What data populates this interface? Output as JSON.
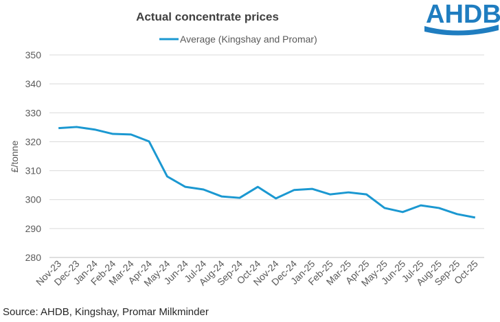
{
  "chart_data": {
    "type": "line",
    "title": "Actual concentrate prices",
    "logo": "AHDB",
    "y_label": "£/tonne",
    "source": "Source: AHDB, Kingshay, Promar Milkminder",
    "categories": [
      "Nov-23",
      "Dec-23",
      "Jan-24",
      "Feb-24",
      "Mar-24",
      "Apr-24",
      "May-24",
      "Jun-24",
      "Jul-24",
      "Aug-24",
      "Sep-24",
      "Oct-24",
      "Nov-24",
      "Dec-24",
      "Jan-25",
      "Feb-25",
      "Mar-25",
      "Apr-25",
      "May-25",
      "Jun-25",
      "Jul-25",
      "Aug-25",
      "Sep-25",
      "Oct-25"
    ],
    "series": [
      {
        "name": "Average (Kingshay and Promar)",
        "color": "#1b98d1",
        "values": [
          324.7,
          325.1,
          324.2,
          322.7,
          322.5,
          320.1,
          308.0,
          304.4,
          303.5,
          301.1,
          300.6,
          304.4,
          300.4,
          303.3,
          303.7,
          301.8,
          302.5,
          301.8,
          297.1,
          295.7,
          298.0,
          297.1,
          295.0,
          293.8
        ]
      }
    ],
    "ylim": [
      280,
      350
    ],
    "yticks": [
      280,
      290,
      300,
      310,
      320,
      330,
      340,
      350
    ],
    "grid": true,
    "legend": "top"
  }
}
